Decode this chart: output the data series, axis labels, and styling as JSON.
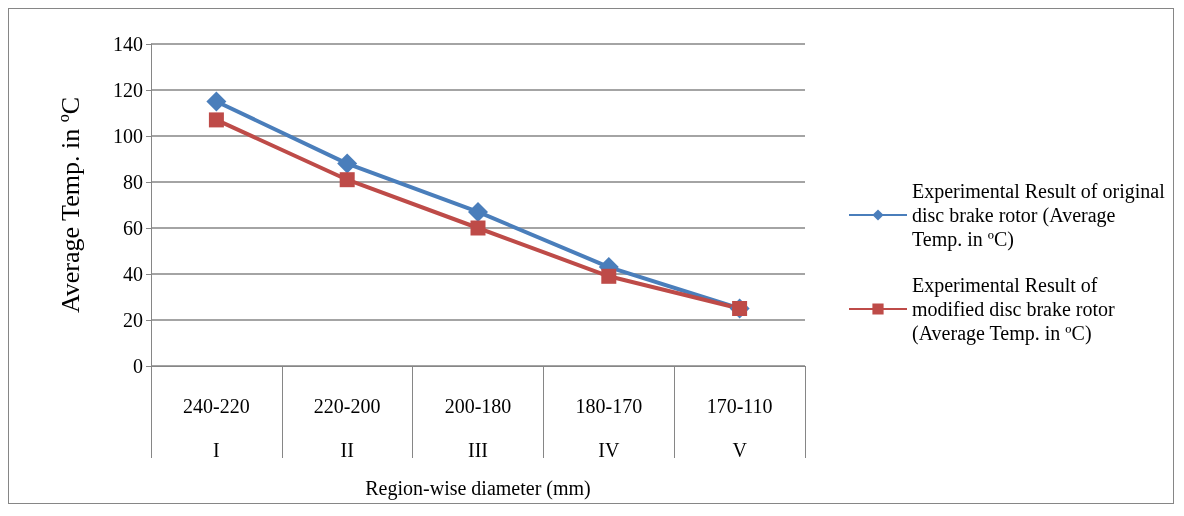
{
  "chart_data": {
    "type": "line",
    "xlabel": "Region-wise diameter (mm)",
    "ylabel": "Average Temp. in ºC",
    "categories": [
      "240-220\nI",
      "220-200\nII",
      "200-180\nIII",
      "180-170\nIV",
      "170-110\nV"
    ],
    "series": [
      {
        "name": "Experimental Result of original disc brake rotor (Average Temp. in ºC)",
        "color": "#4a7ebb",
        "marker": "diamond",
        "values": [
          115,
          88,
          67,
          43,
          25
        ]
      },
      {
        "name": "Experimental Result of modified disc brake rotor (Average Temp. in ºC)",
        "color": "#be4b48",
        "marker": "square",
        "values": [
          107,
          81,
          60,
          39,
          25
        ]
      }
    ],
    "ylim": [
      0,
      140
    ],
    "yticks": [
      0,
      20,
      40,
      60,
      80,
      100,
      120,
      140
    ],
    "grid": "y",
    "legend": "right",
    "line_style": "solid"
  }
}
